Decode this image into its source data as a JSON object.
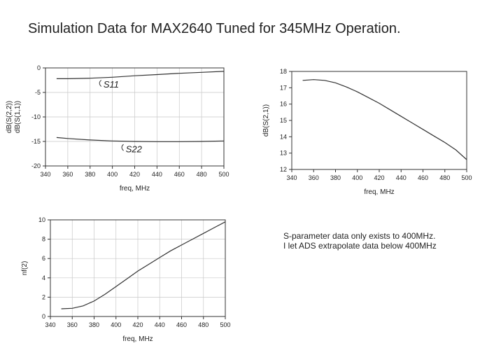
{
  "title": "Simulation Data for MAX2640 Tuned for 345MHz Operation.",
  "note": {
    "line1": "S-parameter data only exists to 400MHz.",
    "line2": "I let ADS extrapolate data below 400MHz"
  },
  "chart_data": [
    {
      "type": "line",
      "xlabel": "freq, MHz",
      "ylabel_lines": [
        "dB(S(2,2))",
        "dB(S(1,1))"
      ],
      "xlim": [
        340,
        500
      ],
      "ylim": [
        -20,
        0
      ],
      "xticks": [
        340,
        360,
        380,
        400,
        420,
        440,
        460,
        480,
        500
      ],
      "yticks": [
        -20,
        -15,
        -10,
        -5,
        0
      ],
      "grid": true,
      "series": [
        {
          "name": "S11",
          "annotation": "S11",
          "x": [
            350,
            360,
            380,
            400,
            420,
            440,
            460,
            480,
            500
          ],
          "y": [
            -2.2,
            -2.2,
            -2.1,
            -1.9,
            -1.6,
            -1.35,
            -1.1,
            -0.9,
            -0.7
          ]
        },
        {
          "name": "S22",
          "annotation": "S22",
          "x": [
            350,
            360,
            380,
            400,
            420,
            440,
            460,
            480,
            500
          ],
          "y": [
            -14.2,
            -14.4,
            -14.7,
            -14.9,
            -15.0,
            -15.05,
            -15.05,
            -15.0,
            -14.9
          ]
        }
      ]
    },
    {
      "type": "line",
      "xlabel": "freq, MHz",
      "ylabel_lines": [
        "dB(S(2,1))"
      ],
      "xlim": [
        340,
        500
      ],
      "ylim": [
        12,
        18
      ],
      "xticks": [
        340,
        360,
        380,
        400,
        420,
        440,
        460,
        480,
        500
      ],
      "yticks": [
        12,
        13,
        14,
        15,
        16,
        17,
        18
      ],
      "grid": false,
      "series": [
        {
          "name": "S21",
          "x": [
            350,
            360,
            370,
            380,
            390,
            400,
            410,
            420,
            430,
            440,
            450,
            460,
            470,
            480,
            490,
            500
          ],
          "y": [
            17.45,
            17.5,
            17.45,
            17.3,
            17.05,
            16.75,
            16.4,
            16.05,
            15.65,
            15.25,
            14.85,
            14.45,
            14.05,
            13.65,
            13.2,
            12.6
          ]
        }
      ]
    },
    {
      "type": "line",
      "xlabel": "freq, MHz",
      "ylabel_lines": [
        "nf(2)"
      ],
      "xlim": [
        340,
        500
      ],
      "ylim": [
        0,
        10
      ],
      "xticks": [
        340,
        360,
        380,
        400,
        420,
        440,
        460,
        480,
        500
      ],
      "yticks": [
        0,
        2,
        4,
        6,
        8,
        10
      ],
      "grid": true,
      "series": [
        {
          "name": "NF",
          "x": [
            350,
            360,
            370,
            380,
            390,
            400,
            410,
            420,
            430,
            440,
            450,
            460,
            470,
            480,
            490,
            500
          ],
          "y": [
            0.8,
            0.85,
            1.1,
            1.6,
            2.3,
            3.1,
            3.9,
            4.7,
            5.4,
            6.1,
            6.8,
            7.4,
            8.0,
            8.6,
            9.2,
            9.8
          ]
        }
      ]
    }
  ]
}
